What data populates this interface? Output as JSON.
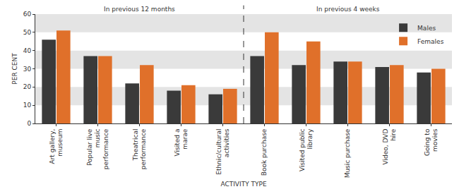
{
  "chart_data": {
    "type": "bar",
    "categories": [
      "Art gallery, museum",
      "Popular live music performance",
      "Theatrical performance",
      "Visited a marae",
      "Ethnic/cultural activities",
      "Book purchase",
      "Visited public library",
      "Music purchase",
      "Video, DVD hire",
      "Going to movies"
    ],
    "series": [
      {
        "name": "Males",
        "color": "#3a3a3a",
        "values": [
          46,
          37,
          22,
          18,
          16,
          37,
          32,
          34,
          31,
          28
        ]
      },
      {
        "name": "Females",
        "color": "#e0702a",
        "values": [
          51,
          37,
          32,
          21,
          19,
          50,
          45,
          34,
          32,
          30
        ]
      }
    ],
    "xlabel": "ACTIVITY TYPE",
    "ylabel": "PER CENT",
    "annotations": [
      "In previous 12 months",
      "In previous 4 weeks"
    ],
    "ylim": [
      0,
      60
    ],
    "yticks": [
      0,
      10,
      20,
      30,
      40,
      50,
      60
    ],
    "grid": true,
    "legend": "upper right"
  }
}
